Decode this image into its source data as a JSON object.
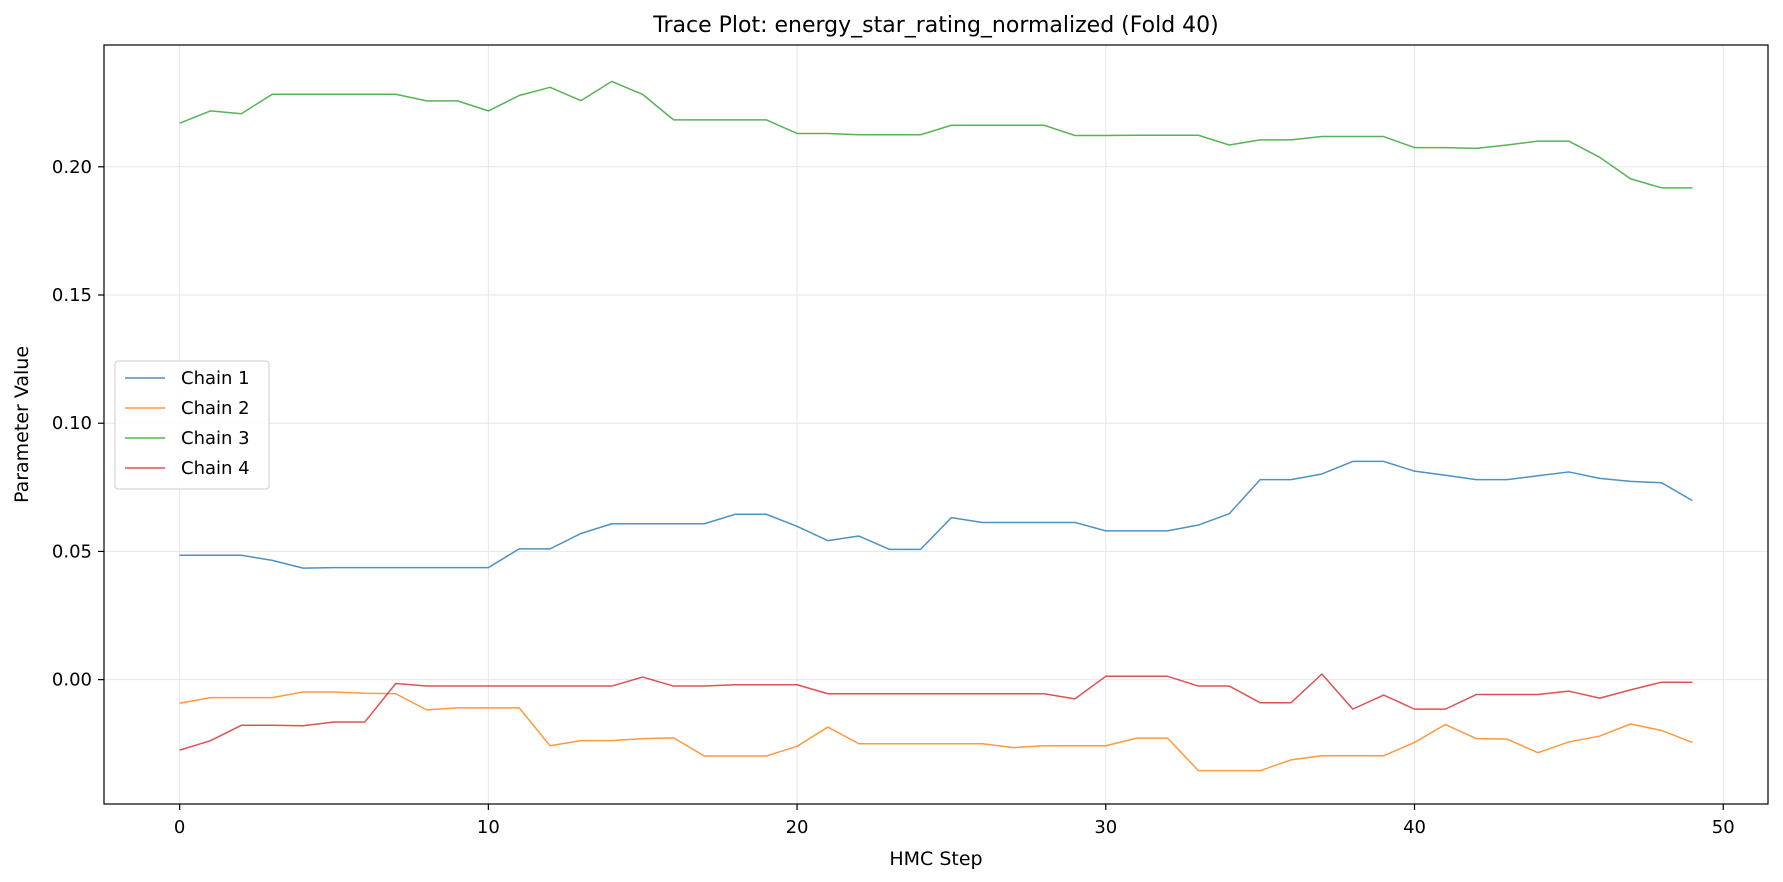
{
  "chart_data": {
    "type": "line",
    "title": "Trace Plot: energy_star_rating_normalized (Fold 40)",
    "xlabel": "HMC Step",
    "ylabel": "Parameter Value",
    "xlim": [
      -2.45,
      51.45
    ],
    "ylim": [
      -0.0485,
      0.2475
    ],
    "xticks": [
      0,
      10,
      20,
      30,
      40,
      50
    ],
    "yticks": [
      0.0,
      0.05,
      0.1,
      0.15,
      0.2
    ],
    "ytick_labels": [
      "0.00",
      "0.05",
      "0.10",
      "0.15",
      "0.20"
    ],
    "grid": true,
    "legend_position": "center-left",
    "x": [
      0,
      1,
      2,
      3,
      4,
      5,
      6,
      7,
      8,
      9,
      10,
      11,
      12,
      13,
      14,
      15,
      16,
      17,
      18,
      19,
      20,
      21,
      22,
      23,
      24,
      25,
      26,
      27,
      28,
      29,
      30,
      31,
      32,
      33,
      34,
      35,
      36,
      37,
      38,
      39,
      40,
      41,
      42,
      43,
      44,
      45,
      46,
      47,
      48,
      49
    ],
    "series": [
      {
        "name": "Chain 1",
        "color": "#1f77b4",
        "values": [
          0.0485,
          0.0485,
          0.0485,
          0.0465,
          0.0435,
          0.0437,
          0.0437,
          0.0437,
          0.0437,
          0.0437,
          0.0437,
          0.051,
          0.051,
          0.057,
          0.0608,
          0.0608,
          0.0608,
          0.0608,
          0.0645,
          0.0645,
          0.0598,
          0.0542,
          0.056,
          0.0508,
          0.0508,
          0.0632,
          0.0613,
          0.0613,
          0.0613,
          0.0613,
          0.058,
          0.058,
          0.058,
          0.0603,
          0.0647,
          0.078,
          0.078,
          0.0802,
          0.0851,
          0.0851,
          0.0813,
          0.0797,
          0.078,
          0.078,
          0.0795,
          0.081,
          0.0785,
          0.0773,
          0.0768,
          0.0698
        ]
      },
      {
        "name": "Chain 2",
        "color": "#ff7f0e",
        "values": [
          -0.0092,
          -0.007,
          -0.007,
          -0.007,
          -0.0048,
          -0.0048,
          -0.0053,
          -0.0055,
          -0.0118,
          -0.011,
          -0.011,
          -0.011,
          -0.0258,
          -0.0238,
          -0.0238,
          -0.023,
          -0.0227,
          -0.0298,
          -0.0298,
          -0.0298,
          -0.026,
          -0.0185,
          -0.025,
          -0.025,
          -0.025,
          -0.025,
          -0.025,
          -0.0265,
          -0.0258,
          -0.0258,
          -0.0258,
          -0.0228,
          -0.0228,
          -0.0355,
          -0.0355,
          -0.0355,
          -0.0313,
          -0.0297,
          -0.0297,
          -0.0297,
          -0.0245,
          -0.0175,
          -0.023,
          -0.0232,
          -0.0285,
          -0.0243,
          -0.022,
          -0.0173,
          -0.0198,
          -0.0245
        ]
      },
      {
        "name": "Chain 3",
        "color": "#2ca02c",
        "values": [
          0.217,
          0.2218,
          0.2207,
          0.2283,
          0.2283,
          0.2283,
          0.2283,
          0.2283,
          0.2257,
          0.2257,
          0.2218,
          0.2278,
          0.231,
          0.2258,
          0.2333,
          0.2282,
          0.2183,
          0.2183,
          0.2183,
          0.2183,
          0.213,
          0.213,
          0.2125,
          0.2125,
          0.2125,
          0.2162,
          0.2162,
          0.2162,
          0.2162,
          0.2122,
          0.2122,
          0.2123,
          0.2123,
          0.2123,
          0.2085,
          0.2105,
          0.2105,
          0.2118,
          0.2118,
          0.2118,
          0.2075,
          0.2075,
          0.2072,
          0.2085,
          0.21,
          0.21,
          0.2037,
          0.1953,
          0.1918,
          0.1918
        ]
      },
      {
        "name": "Chain 4",
        "color": "#d62728",
        "values": [
          -0.0275,
          -0.0238,
          -0.0178,
          -0.0178,
          -0.018,
          -0.0165,
          -0.0165,
          -0.0015,
          -0.0025,
          -0.0025,
          -0.0025,
          -0.0025,
          -0.0025,
          -0.0025,
          -0.0025,
          0.001,
          -0.0025,
          -0.0025,
          -0.002,
          -0.002,
          -0.002,
          -0.0055,
          -0.0055,
          -0.0055,
          -0.0055,
          -0.0055,
          -0.0055,
          -0.0055,
          -0.0055,
          -0.0075,
          0.0013,
          0.0013,
          0.0013,
          -0.0025,
          -0.0025,
          -0.009,
          -0.009,
          0.0022,
          -0.0115,
          -0.006,
          -0.0115,
          -0.0115,
          -0.0058,
          -0.0058,
          -0.0058,
          -0.0045,
          -0.0072,
          -0.004,
          -0.001,
          -0.001
        ]
      }
    ]
  }
}
